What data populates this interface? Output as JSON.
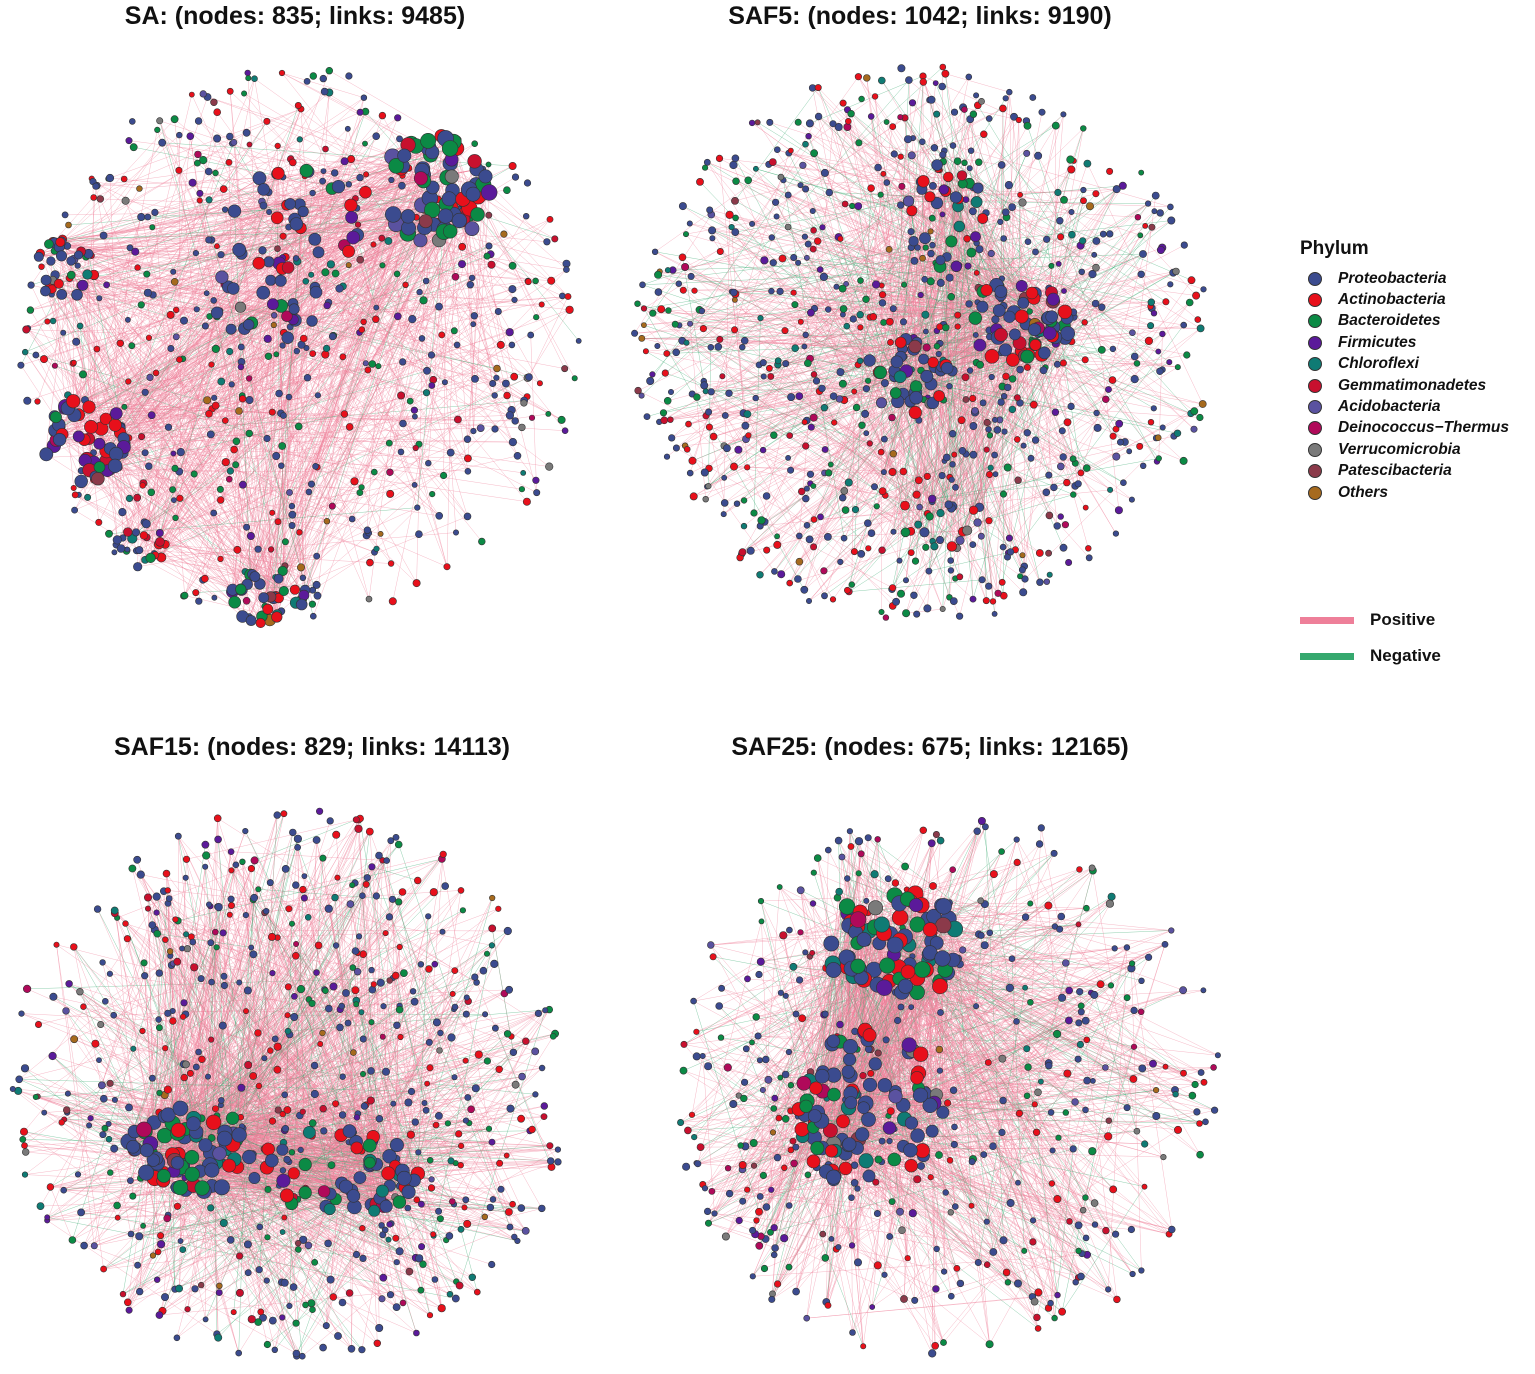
{
  "panels": [
    {
      "title": "SA: (nodes: 835; links: 9485)",
      "nodes": 835,
      "links": 9485,
      "layout": "modular-clusters"
    },
    {
      "title": "SAF5: (nodes: 1042; links: 9190)",
      "nodes": 1042,
      "links": 9190,
      "layout": "diffuse"
    },
    {
      "title": "SAF15: (nodes: 829; links: 14113)",
      "nodes": 829,
      "links": 14113,
      "layout": "horizontal-core"
    },
    {
      "title": "SAF25: (nodes: 675; links: 12165)",
      "nodes": 675,
      "links": 12165,
      "layout": "vertical-core"
    }
  ],
  "legend": {
    "title": "Phylum",
    "items": [
      {
        "label": "Proteobacteria",
        "color": "#3B4B8F"
      },
      {
        "label": "Actinobacteria",
        "color": "#E8101B"
      },
      {
        "label": "Bacteroidetes",
        "color": "#0B8A45"
      },
      {
        "label": "Firmicutes",
        "color": "#5B1A9A"
      },
      {
        "label": "Chloroflexi",
        "color": "#0F7B74"
      },
      {
        "label": "Gemmatimonadetes",
        "color": "#C8102E"
      },
      {
        "label": "Acidobacteria",
        "color": "#5A52A0"
      },
      {
        "label": "Deinococcus−Thermus",
        "color": "#B0095A"
      },
      {
        "label": "Verrucomicrobia",
        "color": "#7A7A7A"
      },
      {
        "label": "Patescibacteria",
        "color": "#8B3A4A"
      },
      {
        "label": "Others",
        "color": "#A66A1E"
      }
    ]
  },
  "edge_legend": [
    {
      "label": "Positive",
      "color": "#EE7F99"
    },
    {
      "label": "Negative",
      "color": "#35A86E"
    }
  ]
}
